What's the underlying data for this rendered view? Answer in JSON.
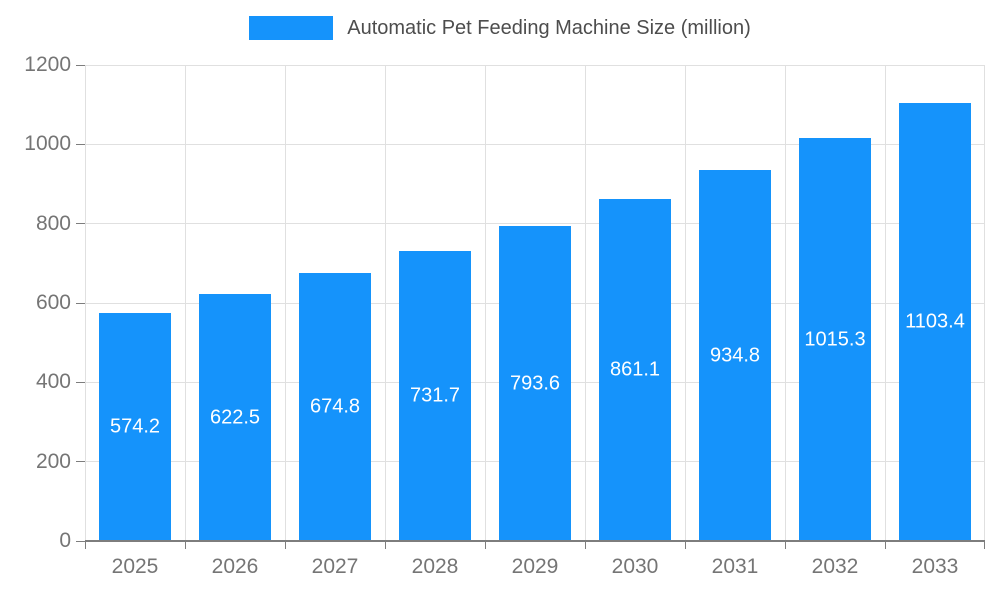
{
  "chart_data": {
    "type": "bar",
    "title": "Automatic Pet Feeding Machine Size (million)",
    "series_name": "Automatic Pet Feeding Machine Size (million)",
    "categories": [
      "2025",
      "2026",
      "2027",
      "2028",
      "2029",
      "2030",
      "2031",
      "2032",
      "2033"
    ],
    "values": [
      574.2,
      622.5,
      674.8,
      731.7,
      793.6,
      861.1,
      934.8,
      1015.3,
      1103.4
    ],
    "xlabel": "",
    "ylabel": "",
    "ylim": [
      0,
      1200
    ],
    "yticks": [
      0,
      200,
      400,
      600,
      800,
      1000,
      1200
    ],
    "grid": true,
    "legend_position": "top",
    "colors": {
      "bar": "#1593fb",
      "bar_label": "#ffffff",
      "axis_text": "#757575",
      "legend_text": "#4d4d4d",
      "grid": "#e0e0e0",
      "axis_line": "#7d7d7d"
    }
  }
}
